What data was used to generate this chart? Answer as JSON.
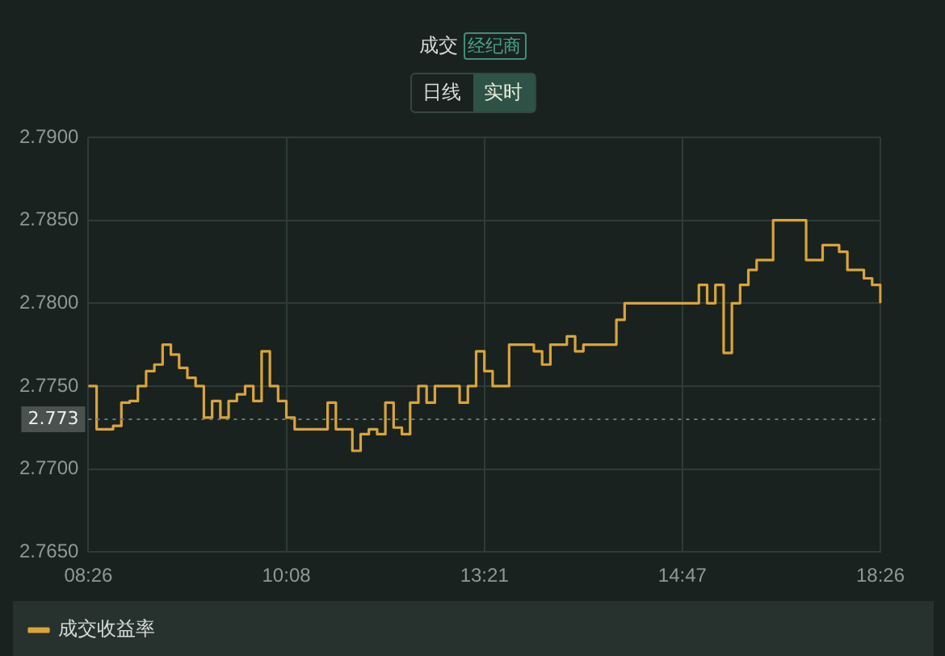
{
  "chart_data": {
    "type": "step",
    "title": "成交",
    "annotations": [
      "经纪商",
      "日线",
      "实时"
    ],
    "categories": [
      "08:26",
      null,
      null,
      null,
      null,
      null,
      null,
      null,
      null,
      null,
      null,
      null,
      null,
      null,
      null,
      null,
      null,
      null,
      null,
      null,
      null,
      null,
      null,
      null,
      "10:08",
      null,
      null,
      null,
      null,
      null,
      null,
      null,
      null,
      null,
      null,
      null,
      null,
      null,
      null,
      null,
      null,
      null,
      null,
      null,
      null,
      null,
      null,
      null,
      "13:21",
      null,
      null,
      null,
      null,
      null,
      null,
      null,
      null,
      null,
      null,
      null,
      null,
      null,
      null,
      null,
      null,
      null,
      null,
      null,
      null,
      null,
      null,
      null,
      "14:47",
      null,
      null,
      null,
      null,
      null,
      null,
      null,
      null,
      null,
      null,
      null,
      null,
      null,
      null,
      null,
      null,
      null,
      null,
      null,
      null,
      null,
      null,
      null,
      "18:26"
    ],
    "series": [
      {
        "name": "成交收益率",
        "color": "#d9a43a",
        "values": [
          2.775,
          2.7724,
          2.7724,
          2.7726,
          2.774,
          2.7741,
          2.775,
          2.7759,
          2.7763,
          2.7775,
          2.7769,
          2.7761,
          2.7755,
          2.775,
          2.7731,
          2.7741,
          2.7731,
          2.7741,
          2.7745,
          2.775,
          2.7741,
          2.7771,
          2.775,
          2.7741,
          2.7731,
          2.7724,
          2.7724,
          2.7724,
          2.7724,
          2.774,
          2.7724,
          2.7724,
          2.7711,
          2.7721,
          2.7724,
          2.7721,
          2.774,
          2.7725,
          2.7721,
          2.774,
          2.775,
          2.774,
          2.775,
          2.775,
          2.775,
          2.774,
          2.775,
          2.7771,
          2.7759,
          2.775,
          2.775,
          2.7775,
          2.7775,
          2.7775,
          2.7771,
          2.7763,
          2.7775,
          2.7775,
          2.778,
          2.7771,
          2.7775,
          2.7775,
          2.7775,
          2.7775,
          2.779,
          2.78,
          2.78,
          2.78,
          2.78,
          2.78,
          2.78,
          2.78,
          2.78,
          2.78,
          2.7811,
          2.78,
          2.7811,
          2.777,
          2.78,
          2.7811,
          2.782,
          2.7826,
          2.7826,
          2.785,
          2.785,
          2.785,
          2.785,
          2.7826,
          2.7826,
          2.7835,
          2.7835,
          2.7831,
          2.782,
          2.782,
          2.7815,
          2.7811,
          2.78
        ]
      }
    ],
    "ylim": [
      2.765,
      2.79
    ],
    "yticks": [
      {
        "value": 2.765,
        "label": "2.7650"
      },
      {
        "value": 2.77,
        "label": "2.7700"
      },
      {
        "value": 2.775,
        "label": "2.7750"
      },
      {
        "value": 2.78,
        "label": "2.7800"
      },
      {
        "value": 2.785,
        "label": "2.7850"
      },
      {
        "value": 2.79,
        "label": "2.7900"
      }
    ],
    "ref_lines": [
      {
        "axis": "y",
        "value": 2.773,
        "label": "2.773",
        "line_style": "dotted"
      }
    ],
    "grid": true,
    "legend": "bottom",
    "marker": "none",
    "line_style": "solid"
  }
}
